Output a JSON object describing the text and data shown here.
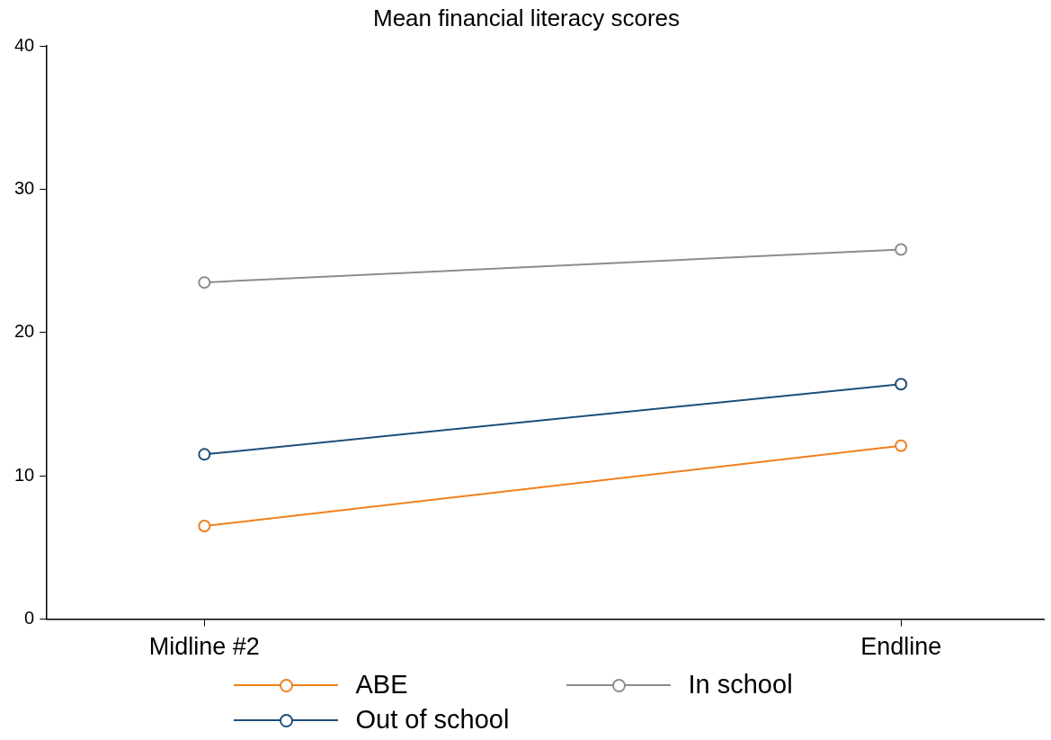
{
  "chart_data": {
    "type": "line",
    "title": "Mean financial literacy scores",
    "categories": [
      "Midline #2",
      "Endline"
    ],
    "series": [
      {
        "name": "ABE",
        "color": "#f07f1c",
        "values": [
          6.5,
          12.1
        ]
      },
      {
        "name": "Out of school",
        "color": "#1f4e79",
        "values": [
          11.5,
          16.4
        ]
      },
      {
        "name": "In school",
        "color": "#8c8c8c",
        "values": [
          23.5,
          25.8
        ]
      }
    ],
    "ylim": [
      0,
      40
    ],
    "yticks": [
      0,
      10,
      20,
      30,
      40
    ],
    "grid": false,
    "legend": "bottom",
    "marker": "circle",
    "line_style": "solid"
  }
}
